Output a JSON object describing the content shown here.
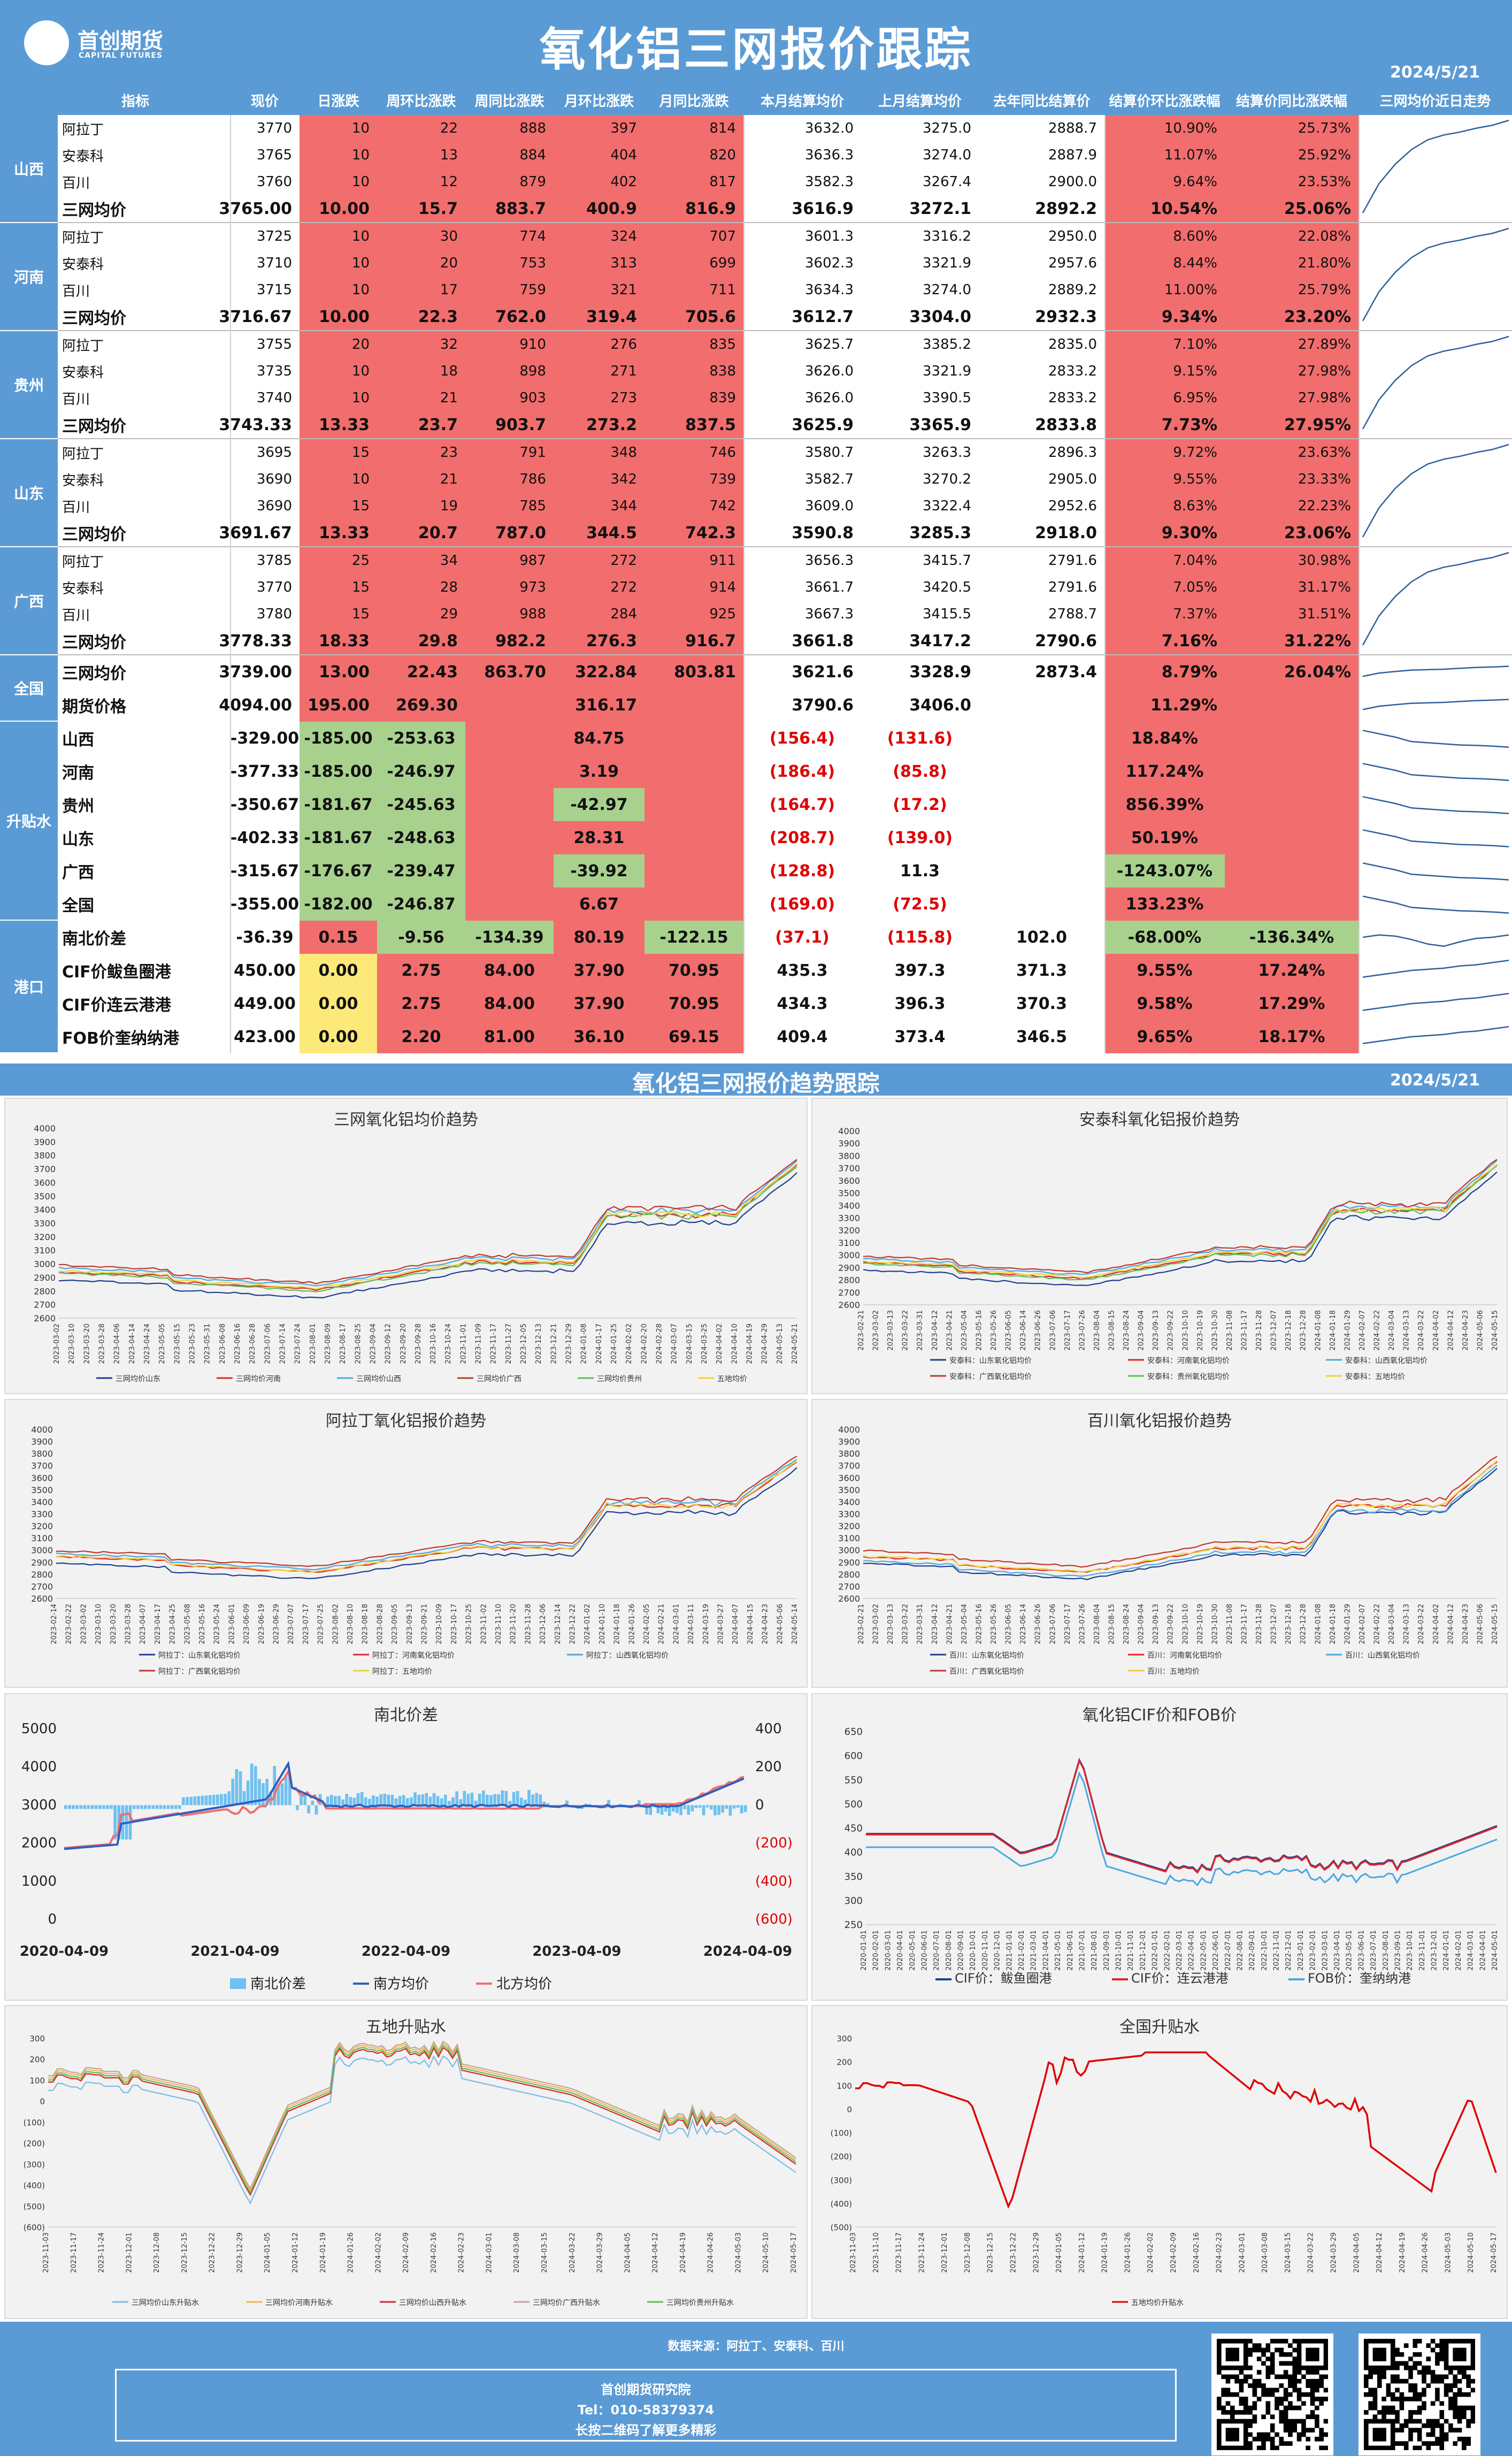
{
  "header": {
    "title": "氧化铝三网报价跟踪",
    "date": "2024/5/21",
    "logo_cn": "首创期货",
    "logo_en": "CAPITAL FUTURES"
  },
  "columns": [
    "指标",
    "现价",
    "日涨跌",
    "周环比涨跌",
    "周同比涨跌",
    "月环比涨跌",
    "月同比涨跌",
    "本月结算均价",
    "上月结算均价",
    "去年同比结算价",
    "结算价环比涨跌幅",
    "结算价同比涨跌幅",
    "三网均价近日走势"
  ],
  "groups": [
    {
      "name": "山西",
      "rows": [
        {
          "label": "阿拉丁",
          "values": [
            "3770",
            "10",
            "22",
            "888",
            "397",
            "814",
            "3632.0",
            "3275.0",
            "2888.7",
            "10.90%",
            "25.73%"
          ]
        },
        {
          "label": "安泰科",
          "values": [
            "3765",
            "10",
            "13",
            "884",
            "404",
            "820",
            "3636.3",
            "3274.0",
            "2887.9",
            "11.07%",
            "25.92%"
          ]
        },
        {
          "label": "百川",
          "values": [
            "3760",
            "10",
            "12",
            "879",
            "402",
            "817",
            "3582.3",
            "3267.4",
            "2900.0",
            "9.64%",
            "23.53%"
          ]
        },
        {
          "label": "三网均价",
          "values": [
            "3765.00",
            "10.00",
            "15.7",
            "883.7",
            "400.9",
            "816.9",
            "3616.9",
            "3272.1",
            "2892.2",
            "10.54%",
            "25.06%"
          ]
        }
      ]
    },
    {
      "name": "河南",
      "rows": [
        {
          "label": "阿拉丁",
          "values": [
            "3725",
            "10",
            "30",
            "774",
            "324",
            "707",
            "3601.3",
            "3316.2",
            "2950.0",
            "8.60%",
            "22.08%"
          ]
        },
        {
          "label": "安泰科",
          "values": [
            "3710",
            "10",
            "20",
            "753",
            "313",
            "699",
            "3602.3",
            "3321.9",
            "2957.6",
            "8.44%",
            "21.80%"
          ]
        },
        {
          "label": "百川",
          "values": [
            "3715",
            "10",
            "17",
            "759",
            "321",
            "711",
            "3634.3",
            "3274.0",
            "2889.2",
            "11.00%",
            "25.79%"
          ]
        },
        {
          "label": "三网均价",
          "values": [
            "3716.67",
            "10.00",
            "22.3",
            "762.0",
            "319.4",
            "705.6",
            "3612.7",
            "3304.0",
            "2932.3",
            "9.34%",
            "23.20%"
          ]
        }
      ]
    },
    {
      "name": "贵州",
      "rows": [
        {
          "label": "阿拉丁",
          "values": [
            "3755",
            "20",
            "32",
            "910",
            "276",
            "835",
            "3625.7",
            "3385.2",
            "2835.0",
            "7.10%",
            "27.89%"
          ]
        },
        {
          "label": "安泰科",
          "values": [
            "3735",
            "10",
            "18",
            "898",
            "271",
            "838",
            "3626.0",
            "3321.9",
            "2833.2",
            "9.15%",
            "27.98%"
          ]
        },
        {
          "label": "百川",
          "values": [
            "3740",
            "10",
            "21",
            "903",
            "273",
            "839",
            "3626.0",
            "3390.5",
            "2833.2",
            "6.95%",
            "27.98%"
          ]
        },
        {
          "label": "三网均价",
          "values": [
            "3743.33",
            "13.33",
            "23.7",
            "903.7",
            "273.2",
            "837.5",
            "3625.9",
            "3365.9",
            "2833.8",
            "7.73%",
            "27.95%"
          ]
        }
      ]
    },
    {
      "name": "山东",
      "rows": [
        {
          "label": "阿拉丁",
          "values": [
            "3695",
            "15",
            "23",
            "791",
            "348",
            "746",
            "3580.7",
            "3263.3",
            "2896.3",
            "9.72%",
            "23.63%"
          ]
        },
        {
          "label": "安泰科",
          "values": [
            "3690",
            "10",
            "21",
            "786",
            "342",
            "739",
            "3582.7",
            "3270.2",
            "2905.0",
            "9.55%",
            "23.33%"
          ]
        },
        {
          "label": "百川",
          "values": [
            "3690",
            "15",
            "19",
            "785",
            "344",
            "742",
            "3609.0",
            "3322.4",
            "2952.6",
            "8.63%",
            "22.23%"
          ]
        },
        {
          "label": "三网均价",
          "values": [
            "3691.67",
            "13.33",
            "20.7",
            "787.0",
            "344.5",
            "742.3",
            "3590.8",
            "3285.3",
            "2918.0",
            "9.30%",
            "23.06%"
          ]
        }
      ]
    },
    {
      "name": "广西",
      "rows": [
        {
          "label": "阿拉丁",
          "values": [
            "3785",
            "25",
            "34",
            "987",
            "272",
            "911",
            "3656.3",
            "3415.7",
            "2791.6",
            "7.04%",
            "30.98%"
          ]
        },
        {
          "label": "安泰科",
          "values": [
            "3770",
            "15",
            "28",
            "973",
            "272",
            "914",
            "3661.7",
            "3420.5",
            "2791.6",
            "7.05%",
            "31.17%"
          ]
        },
        {
          "label": "百川",
          "values": [
            "3780",
            "15",
            "29",
            "988",
            "284",
            "925",
            "3667.3",
            "3415.5",
            "2788.7",
            "7.37%",
            "31.51%"
          ]
        },
        {
          "label": "三网均价",
          "values": [
            "3778.33",
            "18.33",
            "29.8",
            "982.2",
            "276.3",
            "916.7",
            "3661.8",
            "3417.2",
            "2790.6",
            "7.16%",
            "31.22%"
          ]
        }
      ]
    },
    {
      "name": "全国",
      "rows": [
        {
          "label": "三网均价",
          "values": [
            "3739.00",
            "13.00",
            "22.43",
            "863.70",
            "322.84",
            "803.81",
            "3621.6",
            "3328.9",
            "2873.4",
            "8.79%",
            "26.04%"
          ]
        },
        {
          "label": "期货价格",
          "values": [
            "4094.00",
            "195.00",
            "269.30",
            "",
            "316.17",
            "",
            "3790.6",
            "3406.0",
            "",
            "11.29%",
            ""
          ]
        }
      ]
    },
    {
      "name": "升贴水",
      "rows": [
        {
          "label": "山西",
          "values": [
            "-329.00",
            "-185.00",
            "-253.63",
            "",
            "84.75",
            "",
            "(156.4)",
            "(131.6)",
            "",
            "18.84%",
            ""
          ]
        },
        {
          "label": "河南",
          "values": [
            "-377.33",
            "-185.00",
            "-246.97",
            "",
            "3.19",
            "",
            "(186.4)",
            "(85.8)",
            "",
            "117.24%",
            ""
          ]
        },
        {
          "label": "贵州",
          "values": [
            "-350.67",
            "-181.67",
            "-245.63",
            "",
            "-42.97",
            "",
            "(164.7)",
            "(17.2)",
            "",
            "856.39%",
            ""
          ]
        },
        {
          "label": "山东",
          "values": [
            "-402.33",
            "-181.67",
            "-248.63",
            "",
            "28.31",
            "",
            "(208.7)",
            "(139.0)",
            "",
            "50.19%",
            ""
          ]
        },
        {
          "label": "广西",
          "values": [
            "-315.67",
            "-176.67",
            "-239.47",
            "",
            "-39.92",
            "",
            "(128.8)",
            "11.3",
            "",
            "-1243.07%",
            ""
          ]
        },
        {
          "label": "全国",
          "values": [
            "-355.00",
            "-182.00",
            "-246.87",
            "",
            "6.67",
            "",
            "(169.0)",
            "(72.5)",
            "",
            "133.23%",
            ""
          ]
        }
      ]
    },
    {
      "name": "港口",
      "rows": [
        {
          "label": "南北价差",
          "values": [
            "-36.39",
            "0.15",
            "-9.56",
            "-134.39",
            "80.19",
            "-122.15",
            "(37.1)",
            "(115.8)",
            "102.0",
            "-68.00%",
            "-136.34%"
          ]
        },
        {
          "label": "CIF价鲅鱼圈港",
          "values": [
            "450.00",
            "0.00",
            "2.75",
            "84.00",
            "37.90",
            "70.95",
            "435.3",
            "397.3",
            "371.3",
            "9.55%",
            "17.24%"
          ]
        },
        {
          "label": "CIF价连云港港",
          "values": [
            "449.00",
            "0.00",
            "2.75",
            "84.00",
            "37.90",
            "70.95",
            "434.3",
            "396.3",
            "370.3",
            "9.58%",
            "17.29%"
          ]
        },
        {
          "label": "FOB价奎纳纳港",
          "values": [
            "423.00",
            "0.00",
            "2.20",
            "81.00",
            "36.10",
            "69.15",
            "409.4",
            "373.4",
            "346.5",
            "9.65%",
            "18.17%"
          ]
        }
      ]
    }
  ],
  "section2": {
    "title": "氧化铝三网报价趋势跟踪",
    "date": "2024/5/21"
  },
  "chart_data": [
    {
      "type": "line",
      "title": "三网氧化铝均价趋势",
      "ylim": [
        2600,
        4000
      ],
      "legend": [
        "三网均价山东",
        "三网均价河南",
        "三网均价山西",
        "三网均价广西",
        "三网均价贵州",
        "五地均价"
      ],
      "x": [
        "2023-03-02",
        "2023-03-10",
        "2023-03-20",
        "2023-03-28",
        "2023-04-06",
        "2023-04-14",
        "2023-04-24",
        "2023-05-05",
        "2023-05-15",
        "2023-05-23",
        "2023-05-31",
        "2023-06-08",
        "2023-06-16",
        "2023-06-28",
        "2023-07-06",
        "2023-07-14",
        "2023-07-24",
        "2023-08-01",
        "2023-08-09",
        "2023-08-17",
        "2023-08-25",
        "2023-09-04",
        "2023-09-12",
        "2023-09-20",
        "2023-09-28",
        "2023-10-16",
        "2023-10-24",
        "2023-11-01",
        "2023-11-09",
        "2023-11-17",
        "2023-11-27",
        "2023-12-05",
        "2023-12-13",
        "2023-12-21",
        "2023-12-29",
        "2024-01-08",
        "2024-01-17",
        "2024-01-25",
        "2024-02-02",
        "2024-02-20",
        "2024-02-28",
        "2024-03-07",
        "2024-03-15",
        "2024-03-25",
        "2024-04-02",
        "2024-04-10",
        "2024-04-19",
        "2024-04-29",
        "2024-05-13",
        "2024-05-21"
      ]
    },
    {
      "type": "line",
      "title": "安泰科氧化铝报价趋势",
      "ylim": [
        2600,
        4000
      ],
      "legend": [
        "安泰科：山东氧化铝均价",
        "安泰科：河南氧化铝均价",
        "安泰科：山西氧化铝均价",
        "安泰科：广西氧化铝均价",
        "安泰科：贵州氧化铝均价",
        "安泰科：五地均价"
      ],
      "x": [
        "2023-02-21",
        "2023-03-02",
        "2023-03-13",
        "2023-03-22",
        "2023-03-31",
        "2023-04-12",
        "2023-04-21",
        "2023-05-04",
        "2023-05-16",
        "2023-05-26",
        "2023-06-05",
        "2023-06-14",
        "2023-06-26",
        "2023-07-06",
        "2023-07-17",
        "2023-07-26",
        "2023-08-04",
        "2023-08-15",
        "2023-08-24",
        "2023-09-04",
        "2023-09-13",
        "2023-09-22",
        "2023-10-10",
        "2023-10-19",
        "2023-10-30",
        "2023-11-08",
        "2023-11-17",
        "2023-11-28",
        "2023-12-07",
        "2023-12-18",
        "2023-12-28",
        "2024-01-08",
        "2024-01-18",
        "2024-01-29",
        "2024-02-07",
        "2024-02-22",
        "2024-03-04",
        "2024-03-13",
        "2024-03-22",
        "2024-04-02",
        "2024-04-12",
        "2024-04-23",
        "2024-05-06",
        "2024-05-15"
      ]
    },
    {
      "type": "line",
      "title": "阿拉丁氧化铝报价趋势",
      "ylim": [
        2600,
        4000
      ],
      "legend": [
        "阿拉丁：山东氧化铝均价",
        "阿拉丁：河南氧化铝均价",
        "阿拉丁：山西氧化铝均价",
        "阿拉丁：广西氧化铝均价",
        "阿拉丁：五地均价"
      ],
      "x": [
        "2023-02-14",
        "2023-02-22",
        "2023-03-02",
        "2023-03-10",
        "2023-03-20",
        "2023-03-28",
        "2023-04-07",
        "2023-04-17",
        "2023-04-25",
        "2023-05-08",
        "2023-05-16",
        "2023-05-24",
        "2023-06-01",
        "2023-06-09",
        "2023-06-19",
        "2023-06-29",
        "2023-07-07",
        "2023-07-17",
        "2023-07-25",
        "2023-08-02",
        "2023-08-10",
        "2023-08-18",
        "2023-08-28",
        "2023-09-05",
        "2023-09-13",
        "2023-09-21",
        "2023-10-09",
        "2023-10-17",
        "2023-10-25",
        "2023-11-02",
        "2023-11-10",
        "2023-11-20",
        "2023-11-28",
        "2023-12-06",
        "2023-12-14",
        "2023-12-22",
        "2024-01-02",
        "2024-01-10",
        "2024-01-18",
        "2024-01-26",
        "2024-02-05",
        "2024-02-21",
        "2024-03-01",
        "2024-03-11",
        "2024-03-19",
        "2024-03-27",
        "2024-04-07",
        "2024-04-15",
        "2024-04-23",
        "2024-05-06",
        "2024-05-14"
      ]
    },
    {
      "type": "line",
      "title": "百川氧化铝报价趋势",
      "ylim": [
        2600,
        4000
      ],
      "legend": [
        "百川：山东氧化铝均价",
        "百川：河南氧化铝均价",
        "百川：山西氧化铝均价",
        "百川：广西氧化铝均价",
        "百川：五地均价"
      ],
      "x": [
        "2023-02-21",
        "2023-03-02",
        "2023-03-13",
        "2023-03-22",
        "2023-03-31",
        "2023-04-12",
        "2023-04-21",
        "2023-05-04",
        "2023-05-16",
        "2023-05-26",
        "2023-06-05",
        "2023-06-14",
        "2023-06-26",
        "2023-07-06",
        "2023-07-17",
        "2023-07-26",
        "2023-08-04",
        "2023-08-15",
        "2023-08-24",
        "2023-09-04",
        "2023-09-13",
        "2023-09-22",
        "2023-10-10",
        "2023-10-19",
        "2023-10-30",
        "2023-11-08",
        "2023-11-17",
        "2023-11-28",
        "2023-12-07",
        "2023-12-18",
        "2023-12-28",
        "2024-01-08",
        "2024-01-18",
        "2024-01-29",
        "2024-02-07",
        "2024-02-22",
        "2024-03-04",
        "2024-03-13",
        "2024-03-22",
        "2024-04-02",
        "2024-04-12",
        "2024-04-23",
        "2024-05-06",
        "2024-05-15"
      ]
    },
    {
      "type": "line",
      "title": "南北价差",
      "ylim": [
        0,
        5000
      ],
      "y2lim": [
        -600,
        400
      ],
      "y2ticks": [
        "400",
        "200",
        "0",
        "(200)",
        "(400)",
        "(600)"
      ],
      "x": [
        "2020-04-09",
        "2021-04-09",
        "2022-04-09",
        "2023-04-09",
        "2024-04-09"
      ],
      "legend": [
        "南北价差",
        "南方均价",
        "北方均价"
      ]
    },
    {
      "type": "line",
      "title": "氧化铝CIF价和FOB价",
      "ylim": [
        250,
        650
      ],
      "legend": [
        "CIF价：鲅鱼圈港",
        "CIF价：连云港港",
        "FOB价：奎纳纳港"
      ],
      "x": [
        "2020-01-01",
        "2020-02-01",
        "2020-03-01",
        "2020-04-01",
        "2020-05-01",
        "2020-06-01",
        "2020-07-01",
        "2020-08-01",
        "2020-09-01",
        "2020-10-01",
        "2020-11-01",
        "2020-12-01",
        "2021-01-01",
        "2021-02-01",
        "2021-03-01",
        "2021-04-01",
        "2021-05-01",
        "2021-06-01",
        "2021-07-01",
        "2021-08-01",
        "2021-09-01",
        "2021-10-01",
        "2021-11-01",
        "2021-12-01",
        "2022-01-01",
        "2022-02-01",
        "2022-03-01",
        "2022-04-01",
        "2022-05-01",
        "2022-06-01",
        "2022-07-01",
        "2022-08-01",
        "2022-09-01",
        "2022-10-01",
        "2022-11-01",
        "2022-12-01",
        "2023-01-01",
        "2023-02-01",
        "2023-03-01",
        "2023-04-01",
        "2023-05-01",
        "2023-06-01",
        "2023-07-01",
        "2023-08-01",
        "2023-09-01",
        "2023-10-01",
        "2023-11-01",
        "2023-12-01",
        "2024-01-01",
        "2024-02-01",
        "2024-03-01",
        "2024-04-01",
        "2024-05-01"
      ]
    },
    {
      "type": "line",
      "title": "五地升贴水",
      "ylim": [
        -600,
        300
      ],
      "legend": [
        "三网均价山东升贴水",
        "三网均价河南升贴水",
        "三网均价山西升贴水",
        "三网均价广西升贴水",
        "三网均价贵州升贴水"
      ],
      "x": [
        "2023-11-03",
        "2023-11-17",
        "2023-11-24",
        "2023-12-01",
        "2023-12-08",
        "2023-12-15",
        "2023-12-22",
        "2023-12-29",
        "2024-01-05",
        "2024-01-12",
        "2024-01-19",
        "2024-01-26",
        "2024-02-02",
        "2024-02-09",
        "2024-02-16",
        "2024-02-23",
        "2024-03-01",
        "2024-03-08",
        "2024-03-15",
        "2024-03-22",
        "2024-03-29",
        "2024-04-05",
        "2024-04-12",
        "2024-04-19",
        "2024-04-26",
        "2024-05-03",
        "2024-05-10",
        "2024-05-17"
      ]
    },
    {
      "type": "line",
      "title": "全国升贴水",
      "ylim": [
        -500,
        300
      ],
      "legend": [
        "五地均价升贴水"
      ],
      "x": [
        "2023-11-03",
        "2023-11-10",
        "2023-11-17",
        "2023-11-24",
        "2023-12-01",
        "2023-12-08",
        "2023-12-15",
        "2023-12-22",
        "2023-12-29",
        "2024-01-05",
        "2024-01-12",
        "2024-01-19",
        "2024-01-26",
        "2024-02-02",
        "2024-02-09",
        "2024-02-16",
        "2024-02-23",
        "2024-03-01",
        "2024-03-08",
        "2024-03-15",
        "2024-03-22",
        "2024-03-29",
        "2024-04-05",
        "2024-04-12",
        "2024-04-19",
        "2024-04-26",
        "2024-05-03",
        "2024-05-10",
        "2024-05-17"
      ]
    }
  ],
  "footer": {
    "source": "数据来源：阿拉丁、安泰科、百川",
    "org": "首创期货研究院",
    "tel": "Tel：010-58379374",
    "cta": "长按二维码了解更多精彩"
  }
}
